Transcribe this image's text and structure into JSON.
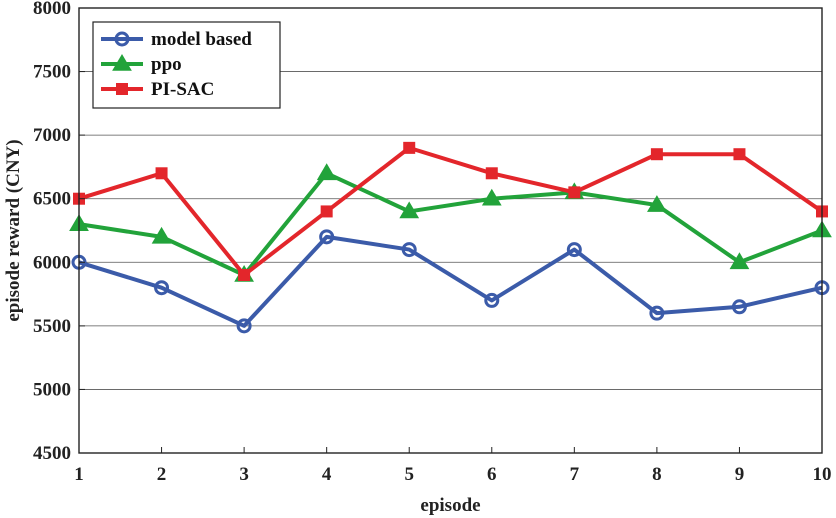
{
  "chart_data": {
    "type": "line",
    "xlabel": "episode",
    "ylabel": "episode reward (CNY)",
    "x": [
      1,
      2,
      3,
      4,
      5,
      6,
      7,
      8,
      9,
      10
    ],
    "xlim": [
      1,
      10
    ],
    "ylim": [
      4500,
      8000
    ],
    "yticks": [
      4500,
      5000,
      5500,
      6000,
      6500,
      7000,
      7500,
      8000
    ],
    "xticks": [
      1,
      2,
      3,
      4,
      5,
      6,
      7,
      8,
      9,
      10
    ],
    "legend_position": "top-left",
    "series": [
      {
        "name": "model based",
        "color": "#3b5ba9",
        "marker": "circle",
        "values": [
          6000,
          5800,
          5500,
          6200,
          6100,
          5700,
          6100,
          5600,
          5650,
          5800
        ]
      },
      {
        "name": "ppo",
        "color": "#22a33a",
        "marker": "triangle",
        "values": [
          6300,
          6200,
          5900,
          6700,
          6400,
          6500,
          6550,
          6450,
          6000,
          6250
        ]
      },
      {
        "name": "PI-SAC",
        "color": "#e3262b",
        "marker": "square",
        "values": [
          6500,
          6700,
          5900,
          6400,
          6900,
          6700,
          6550,
          6850,
          6850,
          6400
        ]
      }
    ]
  }
}
